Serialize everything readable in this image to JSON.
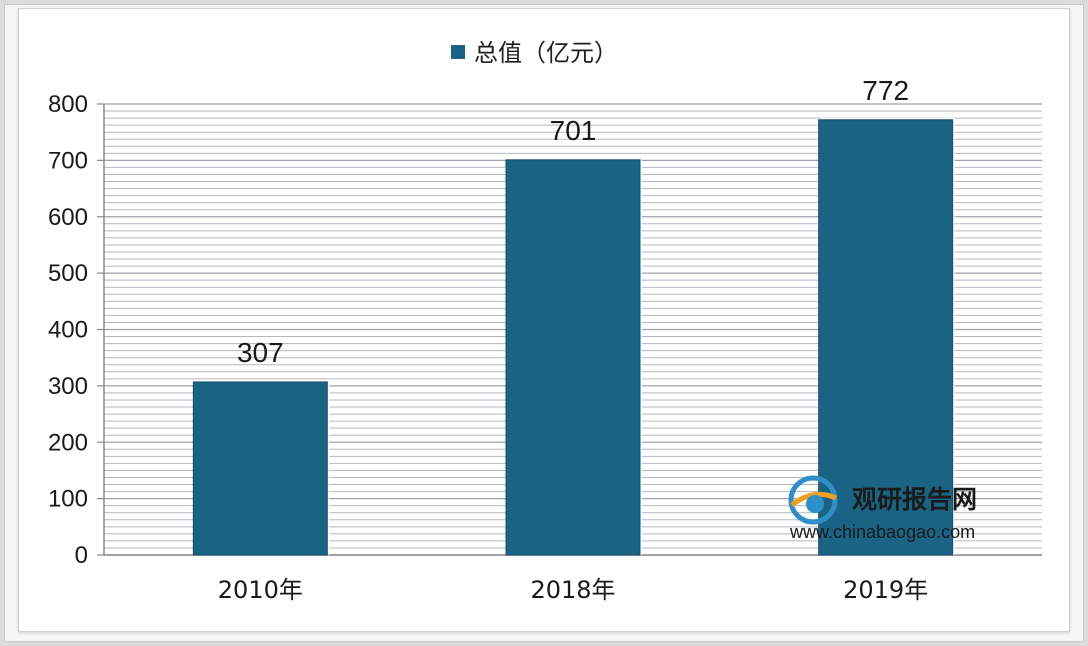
{
  "chart_data": {
    "type": "bar",
    "categories": [
      "2010年",
      "2018年",
      "2019年"
    ],
    "series": [
      {
        "name": "总值（亿元）",
        "values": [
          307,
          701,
          772
        ]
      }
    ],
    "data_labels": [
      "307",
      "701",
      "772"
    ],
    "ylim": [
      0,
      800
    ],
    "yticks": [
      "0",
      "100",
      "200",
      "300",
      "400",
      "500",
      "600",
      "700",
      "800"
    ],
    "grid": true,
    "legend_position": "top-center",
    "colors": {
      "bar": "#1b6385",
      "grid": "#b4b7bf"
    }
  },
  "watermark": {
    "name": "观研报告网",
    "url": "www.chinabaogao.com"
  }
}
